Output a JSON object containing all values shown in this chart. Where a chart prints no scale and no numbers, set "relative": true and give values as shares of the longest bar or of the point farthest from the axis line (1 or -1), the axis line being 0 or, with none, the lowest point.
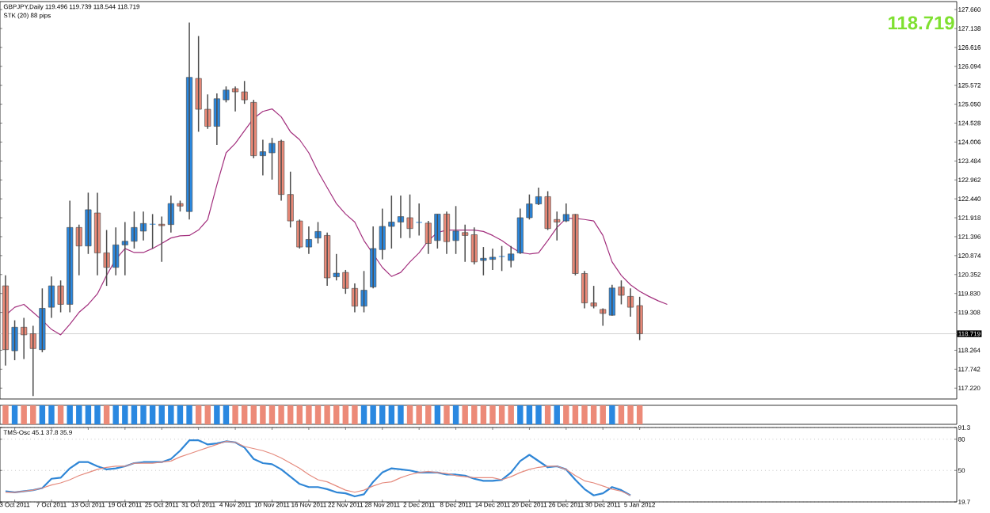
{
  "chart_data": [
    {
      "type": "candlestick",
      "title": "GBPJPY,Daily  119.496 119.739 118.544 118.719",
      "subtitle": "STK (20) 88 pips",
      "categories": [
        null,
        null,
        null,
        null,
        null,
        null,
        null,
        null,
        null,
        null,
        null,
        null,
        null,
        null,
        null,
        null,
        null,
        null,
        null,
        null,
        null,
        null,
        null,
        null,
        null,
        null,
        null,
        null,
        null,
        null,
        null,
        null,
        null,
        null,
        null,
        null,
        null,
        null,
        null,
        null,
        null,
        null,
        null,
        null,
        null,
        null,
        null,
        null,
        null,
        null,
        null,
        null,
        null,
        null,
        null,
        null,
        null,
        null,
        null,
        null,
        null,
        null,
        null,
        null,
        null,
        null,
        null,
        null,
        null,
        null,
        null,
        null,
        null
      ],
      "ohlc": [
        [
          120.04,
          120.33,
          117.84,
          118.28
        ],
        [
          118.25,
          119.09,
          117.99,
          118.9
        ],
        [
          118.9,
          119.16,
          118.02,
          118.69
        ],
        [
          118.72,
          118.94,
          117.0,
          118.31
        ],
        [
          118.28,
          119.97,
          118.21,
          119.42
        ],
        [
          119.45,
          120.3,
          119.16,
          120.04
        ],
        [
          120.04,
          120.19,
          119.31,
          119.53
        ],
        [
          119.53,
          122.39,
          119.31,
          121.65
        ],
        [
          121.65,
          121.73,
          120.33,
          121.14
        ],
        [
          121.14,
          122.61,
          120.92,
          122.14
        ],
        [
          122.05,
          122.61,
          120.33,
          120.95
        ],
        [
          120.95,
          121.58,
          120.04,
          120.55
        ],
        [
          120.55,
          121.65,
          120.33,
          121.17
        ],
        [
          121.17,
          121.8,
          120.33,
          121.27
        ],
        [
          121.27,
          122.09,
          121.07,
          121.65
        ],
        [
          121.55,
          122.09,
          121.29,
          121.76
        ],
        [
          121.74,
          122.02,
          121.07,
          121.74
        ],
        [
          121.74,
          121.95,
          120.7,
          121.7
        ],
        [
          121.73,
          122.53,
          121.51,
          122.31
        ],
        [
          122.31,
          122.39,
          122.09,
          122.24
        ],
        [
          122.09,
          127.3,
          121.87,
          125.79
        ],
        [
          125.76,
          126.93,
          124.29,
          124.91
        ],
        [
          124.91,
          125.32,
          124.37,
          124.44
        ],
        [
          124.44,
          125.35,
          123.93,
          125.2
        ],
        [
          125.17,
          125.54,
          125.1,
          125.44
        ],
        [
          125.48,
          125.54,
          124.85,
          125.39
        ],
        [
          125.39,
          125.69,
          125.06,
          125.17
        ],
        [
          125.1,
          125.17,
          123.56,
          123.63
        ],
        [
          123.63,
          124.07,
          123.09,
          123.74
        ],
        [
          123.71,
          124.12,
          122.97,
          123.97
        ],
        [
          124.03,
          124.07,
          122.39,
          122.56
        ],
        [
          122.56,
          123.19,
          121.65,
          121.83
        ],
        [
          121.83,
          121.87,
          121.07,
          121.11
        ],
        [
          121.11,
          121.68,
          120.92,
          121.32
        ],
        [
          121.36,
          121.8,
          121.21,
          121.54
        ],
        [
          121.43,
          121.51,
          120.04,
          120.26
        ],
        [
          120.29,
          120.92,
          120.19,
          120.39
        ],
        [
          120.41,
          120.48,
          119.82,
          119.97
        ],
        [
          119.97,
          120.11,
          119.31,
          119.48
        ],
        [
          119.48,
          120.45,
          119.31,
          119.92
        ],
        [
          120.01,
          121.68,
          119.97,
          121.07
        ],
        [
          121.04,
          122.17,
          120.77,
          121.68
        ],
        [
          121.68,
          122.53,
          121.07,
          121.8
        ],
        [
          121.8,
          122.53,
          121.36,
          121.95
        ],
        [
          121.92,
          122.56,
          121.36,
          121.62
        ],
        [
          121.79,
          122.31,
          121.43,
          121.79
        ],
        [
          121.77,
          121.83,
          120.92,
          121.21
        ],
        [
          121.29,
          122.02,
          121.07,
          122.02
        ],
        [
          122.02,
          122.09,
          120.92,
          121.26
        ],
        [
          121.29,
          122.24,
          120.92,
          121.55
        ],
        [
          121.51,
          121.73,
          120.7,
          121.43
        ],
        [
          121.45,
          121.65,
          120.63,
          120.7
        ],
        [
          120.74,
          121.11,
          120.33,
          120.8
        ],
        [
          120.77,
          121.07,
          120.48,
          120.83
        ],
        [
          120.85,
          121.14,
          120.45,
          120.85
        ],
        [
          120.74,
          121.14,
          120.55,
          120.92
        ],
        [
          120.95,
          122.17,
          120.92,
          121.92
        ],
        [
          121.92,
          122.56,
          121.87,
          122.3
        ],
        [
          122.3,
          122.75,
          122.27,
          122.5
        ],
        [
          122.5,
          122.65,
          121.58,
          121.62
        ],
        [
          121.87,
          122.09,
          121.29,
          121.8
        ],
        [
          121.83,
          122.31,
          121.8,
          122.01
        ],
        [
          122.01,
          122.02,
          120.33,
          120.38
        ],
        [
          120.38,
          120.45,
          119.42,
          119.57
        ],
        [
          119.57,
          120.04,
          119.42,
          119.48
        ],
        [
          119.39,
          119.42,
          118.94,
          119.28
        ],
        [
          119.23,
          120.07,
          119.22,
          119.98
        ],
        [
          120.01,
          120.19,
          119.53,
          119.78
        ],
        [
          119.75,
          119.97,
          119.19,
          119.45
        ],
        [
          119.496,
          119.739,
          118.544,
          118.719
        ],
        null,
        null,
        null
      ],
      "colors": [
        "#ec8a78",
        "#2a88e0",
        "#ec8a78",
        "#ec8a78",
        "#2a88e0",
        "#2a88e0",
        "#ec8a78",
        "#2a88e0",
        "#ec8a78",
        "#2a88e0",
        "#ec8a78",
        "#ec8a78",
        "#2a88e0",
        "#2a88e0",
        "#2a88e0",
        "#2a88e0",
        "#2a88e0",
        "#ec8a78",
        "#2a88e0",
        "#ec8a78",
        "#2a88e0",
        "#ec8a78",
        "#ec8a78",
        "#2a88e0",
        "#2a88e0",
        "#ec8a78",
        "#ec8a78",
        "#ec8a78",
        "#2a88e0",
        "#2a88e0",
        "#ec8a78",
        "#ec8a78",
        "#ec8a78",
        "#2a88e0",
        "#2a88e0",
        "#ec8a78",
        "#2a88e0",
        "#ec8a78",
        "#ec8a78",
        "#2a88e0",
        "#2a88e0",
        "#2a88e0",
        "#2a88e0",
        "#2a88e0",
        "#ec8a78",
        "#2a88e0",
        "#ec8a78",
        "#2a88e0",
        "#ec8a78",
        "#2a88e0",
        "#ec8a78",
        "#ec8a78",
        "#2a88e0",
        "#2a88e0",
        "#2a88e0",
        "#2a88e0",
        "#2a88e0",
        "#2a88e0",
        "#2a88e0",
        "#ec8a78",
        "#ec8a78",
        "#2a88e0",
        "#ec8a78",
        "#ec8a78",
        "#ec8a78",
        "#ec8a78",
        "#2a88e0",
        "#ec8a78",
        "#ec8a78",
        "#ec8a78",
        null,
        null,
        null
      ],
      "series": [
        {
          "type": "line",
          "color": "#a3307e",
          "values": [
            119.23,
            119.45,
            119.53,
            119.31,
            119.09,
            118.84,
            118.69,
            118.98,
            119.31,
            119.53,
            119.82,
            120.33,
            120.77,
            121.07,
            120.96,
            120.96,
            121.07,
            121.21,
            121.36,
            121.42,
            121.43,
            121.58,
            121.87,
            122.83,
            123.71,
            123.97,
            124.32,
            124.66,
            124.85,
            124.92,
            124.7,
            124.29,
            124.07,
            123.71,
            123.19,
            122.75,
            122.31,
            122.02,
            121.8,
            121.29,
            120.92,
            120.55,
            120.3,
            120.41,
            120.7,
            120.95,
            121.29,
            121.51,
            121.58,
            121.58,
            121.58,
            121.58,
            121.54,
            121.43,
            121.29,
            121.11,
            120.96,
            120.92,
            120.95,
            121.29,
            121.65,
            121.9,
            121.9,
            121.87,
            121.83,
            121.43,
            120.7,
            120.33,
            120.07,
            119.89,
            119.75,
            119.63,
            119.53
          ]
        }
      ],
      "ylim": [
        116.92,
        127.88
      ],
      "yticks": [
        {
          "value": 117.22,
          "label": "117.220"
        },
        117.742,
        118.264,
        119.308,
        {
          "value": 119.83,
          "label": "119.830"
        },
        120.352,
        120.874,
        121.396,
        121.918,
        {
          "value": 122.44,
          "label": "122.440"
        },
        122.962,
        123.484,
        124.006,
        124.528,
        {
          "value": 125.05,
          "label": "125.050"
        },
        125.572,
        126.094,
        126.616,
        127.138,
        {
          "value": 127.66,
          "label": "127.660"
        }
      ],
      "ref_lines": [
        {
          "axis": "y",
          "value": 118.719,
          "label": "118.719",
          "color": "#c8c8c8"
        }
      ],
      "annotations": [
        "118.719"
      ],
      "tick_labels": "y"
    },
    {
      "type": "bar",
      "relative": true,
      "categories": [
        null,
        null,
        null,
        null,
        null,
        null,
        null,
        null,
        null,
        null,
        null,
        null,
        null,
        null,
        null,
        null,
        null,
        null,
        null,
        null,
        null,
        null,
        null,
        null,
        null,
        null,
        null,
        null,
        null,
        null,
        null,
        null,
        null,
        null,
        null,
        null,
        null,
        null,
        null,
        null,
        null,
        null,
        null,
        null,
        null,
        null,
        null,
        null,
        null,
        null,
        null,
        null,
        null,
        null,
        null,
        null,
        null,
        null,
        null,
        null,
        null,
        null,
        null,
        null,
        null,
        null,
        null,
        null,
        null,
        null
      ],
      "values": [
        1,
        1,
        1,
        1,
        1,
        1,
        1,
        1,
        1,
        1,
        1,
        1,
        1,
        1,
        1,
        1,
        1,
        1,
        1,
        1,
        1,
        1,
        1,
        1,
        1,
        1,
        1,
        1,
        1,
        1,
        1,
        1,
        1,
        1,
        1,
        1,
        1,
        1,
        1,
        1,
        1,
        1,
        1,
        1,
        1,
        1,
        1,
        1,
        1,
        1,
        1,
        1,
        1,
        1,
        1,
        1,
        1,
        1,
        1,
        1,
        1,
        1,
        1,
        1,
        1,
        1,
        1,
        1,
        1,
        1
      ],
      "colors": [
        "#ec8a78",
        "#2a88e0",
        "#ec8a78",
        "#ec8a78",
        "#2a88e0",
        "#2a88e0",
        "#ec8a78",
        "#2a88e0",
        "#2a88e0",
        "#2a88e0",
        "#2a88e0",
        "#ec8a78",
        "#2a88e0",
        "#2a88e0",
        "#2a88e0",
        "#2a88e0",
        "#2a88e0",
        "#2a88e0",
        "#2a88e0",
        "#2a88e0",
        "#2a88e0",
        "#ec8a78",
        "#ec8a78",
        "#2a88e0",
        "#2a88e0",
        "#ec8a78",
        "#ec8a78",
        "#ec8a78",
        "#ec8a78",
        "#ec8a78",
        "#ec8a78",
        "#ec8a78",
        "#ec8a78",
        "#ec8a78",
        "#ec8a78",
        "#ec8a78",
        "#ec8a78",
        "#ec8a78",
        "#ec8a78",
        "#2a88e0",
        "#2a88e0",
        "#2a88e0",
        "#2a88e0",
        "#2a88e0",
        "#ec8a78",
        "#ec8a78",
        "#ec8a78",
        "#2a88e0",
        "#ec8a78",
        "#2a88e0",
        "#ec8a78",
        "#ec8a78",
        "#ec8a78",
        "#ec8a78",
        "#ec8a78",
        "#ec8a78",
        "#2a88e0",
        "#2a88e0",
        "#2a88e0",
        "#ec8a78",
        "#2a88e0",
        "#ec8a78",
        "#ec8a78",
        "#ec8a78",
        "#ec8a78",
        "#ec8a78",
        "#2a88e0",
        "#ec8a78",
        "#ec8a78",
        "#ec8a78"
      ],
      "tick_labels": false
    },
    {
      "type": "line",
      "title": "TMS-Osc 45.1 37.8 35.9",
      "categories": [
        null,
        "3 Oct 2011",
        null,
        null,
        null,
        "7 Oct 2011",
        null,
        null,
        null,
        "13 Oct 2011",
        null,
        null,
        null,
        "19 Oct 2011",
        null,
        null,
        null,
        "25 Oct 2011",
        null,
        null,
        null,
        "31 Oct 2011",
        null,
        null,
        null,
        "4 Nov 2011",
        null,
        null,
        null,
        "10 Nov 2011",
        null,
        null,
        null,
        "16 Nov 2011",
        null,
        null,
        null,
        "22 Nov 2011",
        null,
        null,
        null,
        "28 Nov 2011",
        null,
        null,
        null,
        "2 Dec 2011",
        null,
        null,
        null,
        "8 Dec 2011",
        null,
        null,
        null,
        "14 Dec 2011",
        null,
        null,
        null,
        "20 Dec 2011",
        null,
        null,
        null,
        "26 Dec 2011",
        null,
        null,
        null,
        "30 Dec 2011",
        null,
        null,
        null,
        "5 Jan 2012"
      ],
      "series": [
        {
          "color": "#2f86d6",
          "values": [
            30,
            29,
            30,
            31,
            33,
            42,
            43,
            52,
            58,
            58,
            54,
            51,
            52,
            54,
            57,
            58,
            58,
            58,
            61,
            69,
            79,
            79,
            75,
            76,
            78,
            77,
            72,
            61,
            57,
            56,
            51,
            44,
            37,
            34,
            34,
            32,
            29,
            28,
            25,
            27,
            39,
            48,
            52,
            51,
            50,
            48,
            48,
            48,
            46,
            46,
            45,
            42,
            40,
            40,
            41,
            48,
            59,
            65,
            59,
            53,
            54,
            51,
            41,
            32,
            26,
            28,
            34,
            31,
            26,
            null
          ]
        },
        {
          "color": "#e58a7d",
          "values": [
            29,
            29,
            30,
            31,
            33,
            36,
            38,
            41,
            45,
            48,
            51,
            53,
            54,
            54,
            57,
            57,
            57,
            58,
            59,
            63,
            66,
            69,
            72,
            75,
            78,
            77,
            73,
            71,
            69,
            66,
            62,
            57,
            52,
            46,
            41,
            39,
            35,
            31,
            29,
            31,
            35,
            38,
            39,
            43,
            46,
            48,
            49,
            48,
            47,
            45,
            44,
            43,
            43,
            43,
            41,
            44,
            48,
            51,
            53,
            54,
            54,
            51,
            45,
            40,
            38,
            35,
            32,
            30,
            26,
            null
          ]
        }
      ],
      "ylim": [
        19.7,
        91.3
      ],
      "yticks": [
        19.7,
        50,
        80,
        91.3
      ],
      "grid": "y"
    }
  ]
}
